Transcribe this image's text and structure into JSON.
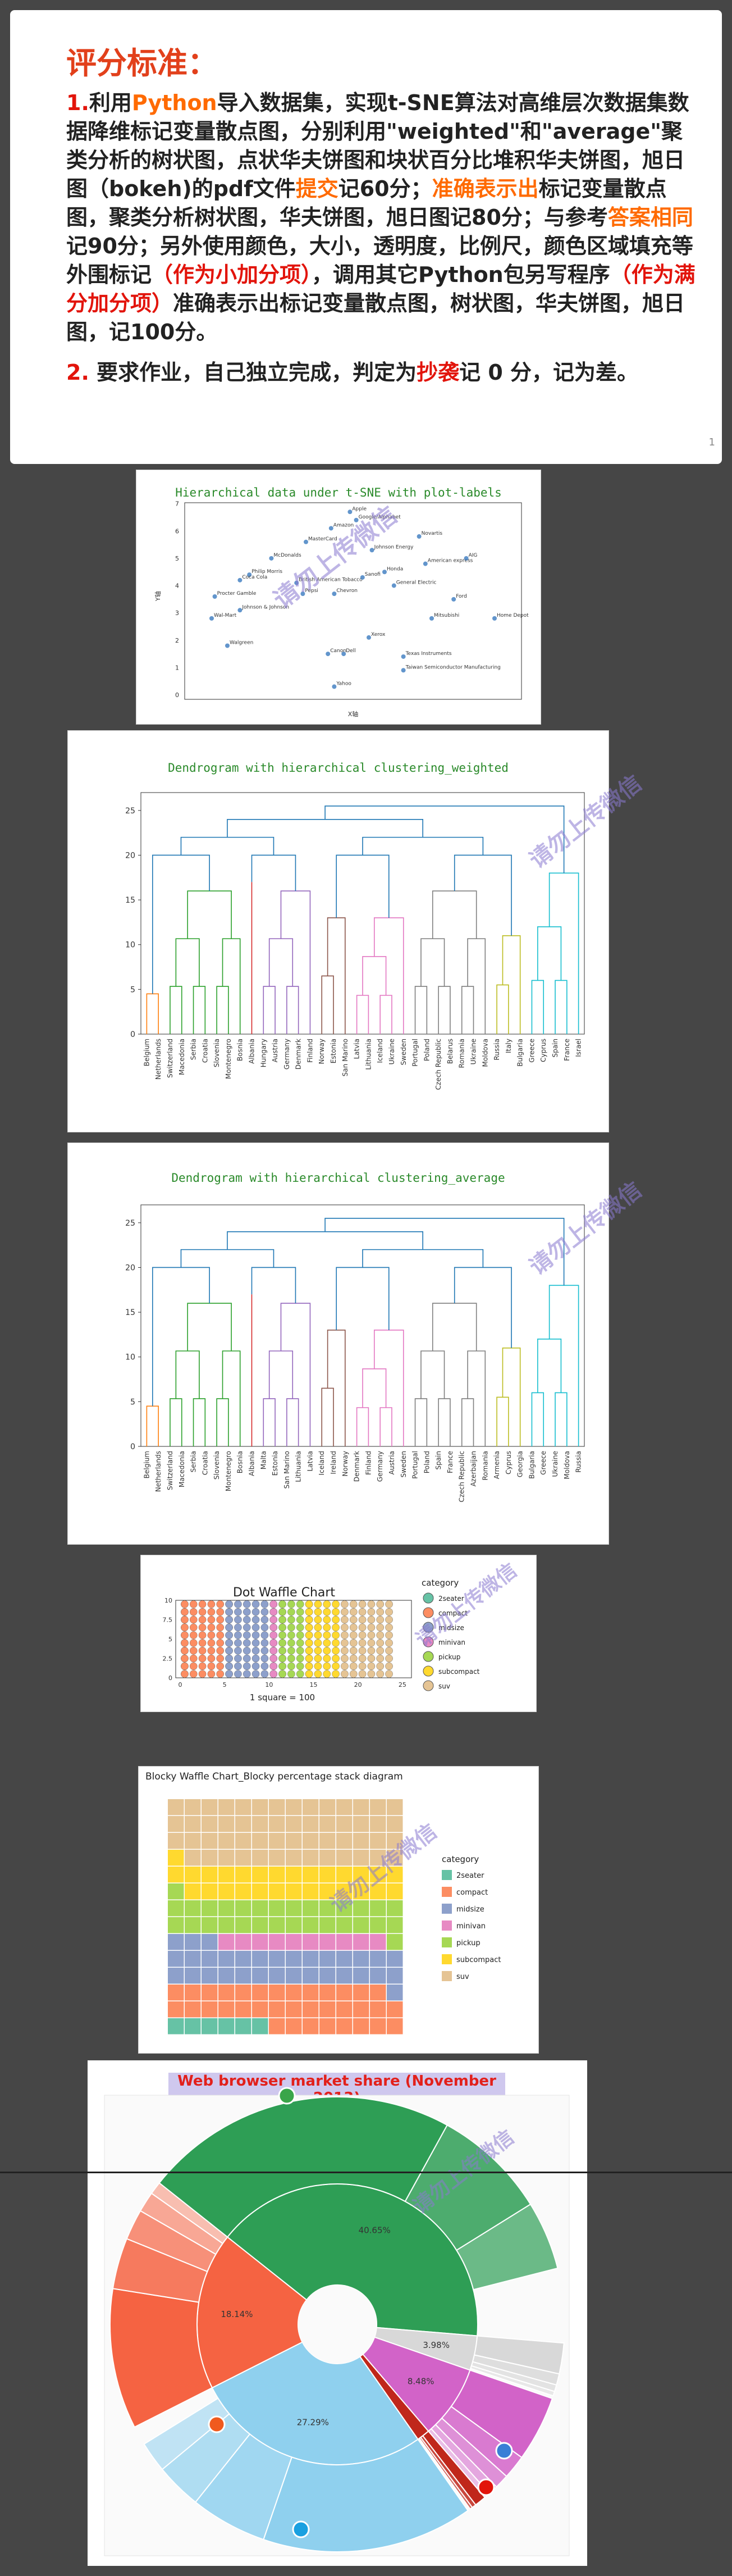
{
  "slide1": {
    "title": "评分标准：",
    "p1_num": "1.",
    "p1_a": "利用",
    "p1_python": "Python",
    "p1_b": "导入数据集，实现t-SNE算法对高维层次数据集数据降维标记变量散点图，分别利用\"weighted\"和\"average\"聚类分析的树状图，点状华夫饼图和块状百分比堆积华夫饼图，旭日图（bokeh)的pdf文件",
    "p1_submit": "提交",
    "p1_c": "记60分；",
    "p1_accurate": "准确表示出",
    "p1_d": "标记变量散点图，聚类分析树状图，华夫饼图，旭日图记80分；与参考",
    "p1_same": "答案相同",
    "p1_e": "记90分；另外使用颜色，大小，透明度，比例尺，颜色区域填充等外围标记",
    "p1_bonus_small": "（作为小加分项）",
    "p1_f": "，调用其它Python包另写程序",
    "p1_bonus_full": "（作为满分加分项）",
    "p1_g": "准确表示出标记变量散点图，树状图，华夫饼图，旭日图，记100分。",
    "p2_num": "2.",
    "p2_a": "要求作业，自己独立完成，判定为",
    "p2_copy": "抄袭",
    "p2_b": "记 0 分，记为差。",
    "page_number": "1"
  },
  "watermark": "请勿上传微信",
  "tsne": {
    "title": "Hierarchical data under t-SNE with plot-labels",
    "ylabel": "Y轴",
    "xlabel": "X轴",
    "yticks": [
      "0",
      "1",
      "2",
      "3",
      "4",
      "5",
      "6",
      "7"
    ],
    "labels": [
      {
        "t": "Apple",
        "x": 4.9,
        "y": 6.7
      },
      {
        "t": "Google/Alphabet",
        "x": 5.1,
        "y": 6.4
      },
      {
        "t": "Amazon",
        "x": 4.3,
        "y": 6.1
      },
      {
        "t": "Novartis",
        "x": 7.1,
        "y": 5.8
      },
      {
        "t": "MasterCard",
        "x": 3.5,
        "y": 5.6
      },
      {
        "t": "Johnson Energy",
        "x": 5.6,
        "y": 5.3
      },
      {
        "t": "McDonalds",
        "x": 2.4,
        "y": 5.0
      },
      {
        "t": "American express",
        "x": 7.3,
        "y": 4.8
      },
      {
        "t": "AIG",
        "x": 8.6,
        "y": 5.0
      },
      {
        "t": "Philip Morris",
        "x": 1.7,
        "y": 4.4
      },
      {
        "t": "Coca Cola",
        "x": 1.4,
        "y": 4.2
      },
      {
        "t": "British American Tobacco",
        "x": 3.2,
        "y": 4.1
      },
      {
        "t": "General Electric",
        "x": 6.3,
        "y": 4.0
      },
      {
        "t": "Pepsi",
        "x": 3.4,
        "y": 3.7
      },
      {
        "t": "Ford",
        "x": 8.2,
        "y": 3.5
      },
      {
        "t": "Procter Gamble",
        "x": 0.6,
        "y": 3.6
      },
      {
        "t": "Johnson & Johnson",
        "x": 1.4,
        "y": 3.1
      },
      {
        "t": "Wal-Mart",
        "x": 0.5,
        "y": 2.8
      },
      {
        "t": "Mitsubishi",
        "x": 7.5,
        "y": 2.8
      },
      {
        "t": "Home Depot",
        "x": 9.5,
        "y": 2.8
      },
      {
        "t": "Walgreen",
        "x": 1.0,
        "y": 1.8
      },
      {
        "t": "Xerox",
        "x": 5.5,
        "y": 2.1
      },
      {
        "t": "Texas Instruments",
        "x": 6.6,
        "y": 1.4
      },
      {
        "t": "Taiwan Semiconductor Manufacturing",
        "x": 6.6,
        "y": 0.9
      },
      {
        "t": "Dell",
        "x": 4.7,
        "y": 1.5
      },
      {
        "t": "Canon",
        "x": 4.2,
        "y": 1.5
      },
      {
        "t": "Yahoo",
        "x": 4.4,
        "y": 0.3
      },
      {
        "t": "Sanofi",
        "x": 5.3,
        "y": 4.3
      },
      {
        "t": "Honda",
        "x": 6.0,
        "y": 4.5
      },
      {
        "t": "Chevron",
        "x": 4.4,
        "y": 3.7
      }
    ]
  },
  "dend1": {
    "title": "Dendrogram with hierarchical clustering_weighted",
    "yticks": [
      "0",
      "5",
      "10",
      "15",
      "20",
      "25"
    ],
    "leaves": [
      "Belgium",
      "Netherlands",
      "Switzerland",
      "Macedonia",
      "Serbia",
      "Croatia",
      "Slovenia",
      "Montenegro",
      "Bosnia",
      "Albania",
      "Hungary",
      "Austria",
      "Germany",
      "Denmark",
      "Finland",
      "Norway",
      "Estonia",
      "San Marino",
      "Latvia",
      "Lithuania",
      "Iceland",
      "Ukraine",
      "Sweden",
      "Portugal",
      "Poland",
      "Czech Republic",
      "Belarus",
      "Romania",
      "Ukraine",
      "Moldova",
      "Russia",
      "Italy",
      "Bulgaria",
      "Greece",
      "Cyprus",
      "Spain",
      "France",
      "Israel"
    ]
  },
  "dend2": {
    "title": "Dendrogram with hierarchical clustering_average",
    "yticks": [
      "0",
      "5",
      "10",
      "15",
      "20",
      "25"
    ],
    "leaves": [
      "Belgium",
      "Netherlands",
      "Switzerland",
      "Macedonia",
      "Serbia",
      "Croatia",
      "Slovenia",
      "Montenegro",
      "Bosnia",
      "Albania",
      "Malta",
      "Estonia",
      "San Marino",
      "Lithuania",
      "Latvia",
      "Iceland",
      "Ireland",
      "Norway",
      "Denmark",
      "Finland",
      "Germany",
      "Austria",
      "Sweden",
      "Portugal",
      "Poland",
      "Spain",
      "France",
      "Czech Republic",
      "Azerbaijan",
      "Romania",
      "Armenia",
      "Cyprus",
      "Georgia",
      "Bulgaria",
      "Greece",
      "Ukraine",
      "Moldova",
      "Russia"
    ]
  },
  "waffle1": {
    "title": "Dot Waffle Chart",
    "xlabel": "1 square = 100",
    "xticks": [
      "0",
      "5",
      "10",
      "15",
      "20",
      "25"
    ],
    "yticks": [
      "0",
      "2.5",
      "5",
      "7.5",
      "10"
    ],
    "legend_title": "category",
    "categories": [
      {
        "name": "2seater",
        "color": "#66c2a5",
        "cols": 0.5
      },
      {
        "name": "compact",
        "color": "#fc8d62",
        "cols": 5
      },
      {
        "name": "midsize",
        "color": "#8da0cb",
        "cols": 5
      },
      {
        "name": "minivan",
        "color": "#e78ac3",
        "cols": 1
      },
      {
        "name": "pickup",
        "color": "#a6d854",
        "cols": 3
      },
      {
        "name": "subcompact",
        "color": "#ffd92f",
        "cols": 3.5
      },
      {
        "name": "suv",
        "color": "#e5c494",
        "cols": 6
      }
    ]
  },
  "waffle2": {
    "title": "Blocky Waffle Chart_Blocky percentage stack diagram",
    "legend_title": "category",
    "categories": [
      {
        "name": "2seater",
        "color": "#66c2a5"
      },
      {
        "name": "compact",
        "color": "#fc8d62"
      },
      {
        "name": "midsize",
        "color": "#8da0cb"
      },
      {
        "name": "minivan",
        "color": "#e78ac3"
      },
      {
        "name": "pickup",
        "color": "#a6d854"
      },
      {
        "name": "subcompact",
        "color": "#ffd92f"
      },
      {
        "name": "suv",
        "color": "#e5c494"
      }
    ]
  },
  "sunburst": {
    "title": "Web browser market share (November 2013)",
    "inner": [
      {
        "label": "40.65%",
        "value": 40.65,
        "color": "#2e9e55"
      },
      {
        "label": "3.98%",
        "value": 3.98,
        "color": "#d8d8d8"
      },
      {
        "label": "8.48%",
        "value": 8.48,
        "color": "#d263c8"
      },
      {
        "label": "",
        "value": 1.5,
        "color": "#c0271b"
      },
      {
        "label": "27.29%",
        "value": 27.29,
        "color": "#8fd0ee"
      },
      {
        "label": "18.14%",
        "value": 18.14,
        "color": "#f56342"
      }
    ]
  }
}
